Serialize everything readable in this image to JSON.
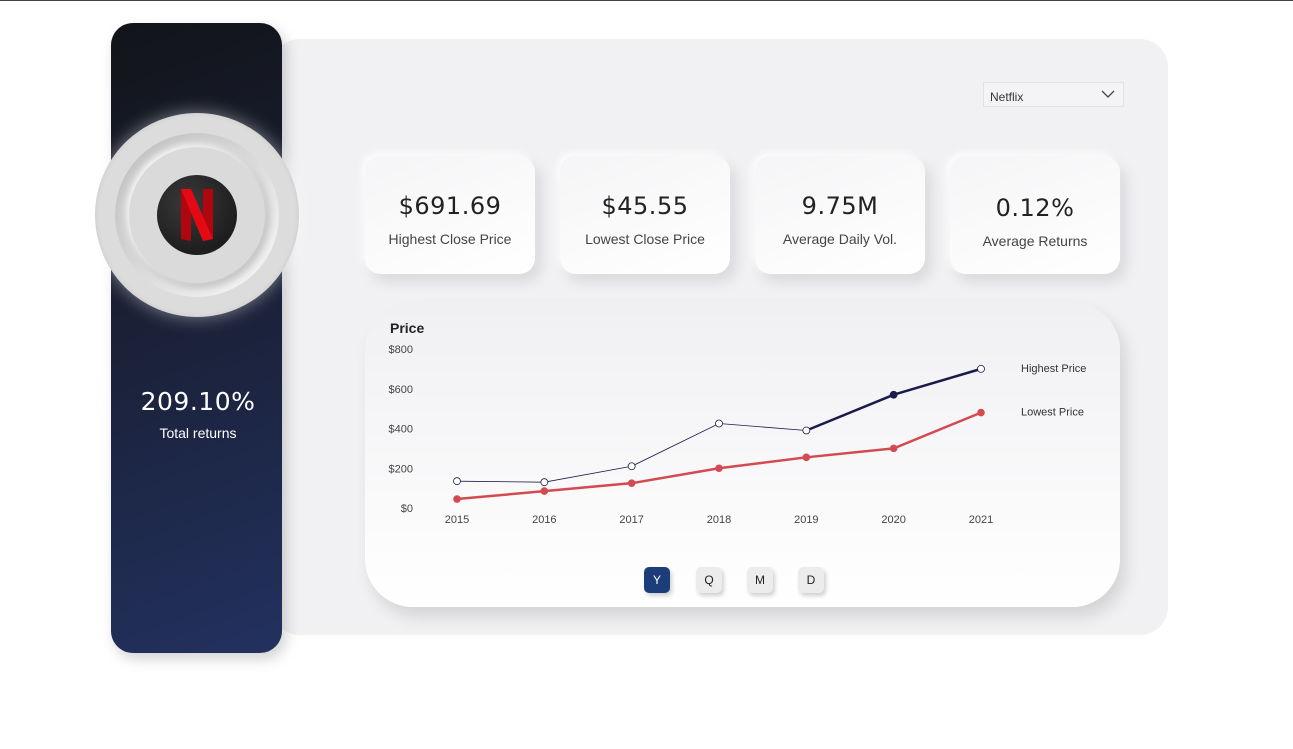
{
  "sidebar": {
    "total_returns_value": "209.10%",
    "total_returns_label": "Total returns"
  },
  "filter": {
    "selected": "Netflix"
  },
  "kpis": [
    {
      "value": "$691.69",
      "label": "Highest Close Price"
    },
    {
      "value": "$45.55",
      "label": "Lowest Close Price"
    },
    {
      "value": "9.75M",
      "label": "Average Daily Vol."
    },
    {
      "value": "0.12%",
      "label": "Average Returns"
    }
  ],
  "granularity_buttons": [
    "Y",
    "Q",
    "M",
    "D"
  ],
  "granularity_selected": "Y",
  "colors": {
    "highest": "#1b1b4b",
    "lowest": "#d34a50",
    "active_button": "#1d3d7a",
    "brand_red": "#e50914"
  },
  "chart_data": {
    "type": "line",
    "title": "Price",
    "categories": [
      "2015",
      "2016",
      "2017",
      "2018",
      "2019",
      "2020",
      "2021"
    ],
    "y_ticks": [
      "$0",
      "$200",
      "$400",
      "$600",
      "$800"
    ],
    "ylim": [
      0,
      800
    ],
    "series": [
      {
        "name": "Highest Price",
        "values": [
          135,
          130,
          210,
          425,
          390,
          570,
          700
        ]
      },
      {
        "name": "Lowest Price",
        "values": [
          45,
          85,
          125,
          200,
          255,
          300,
          480
        ]
      }
    ],
    "legend_position": "right",
    "grid": false
  }
}
